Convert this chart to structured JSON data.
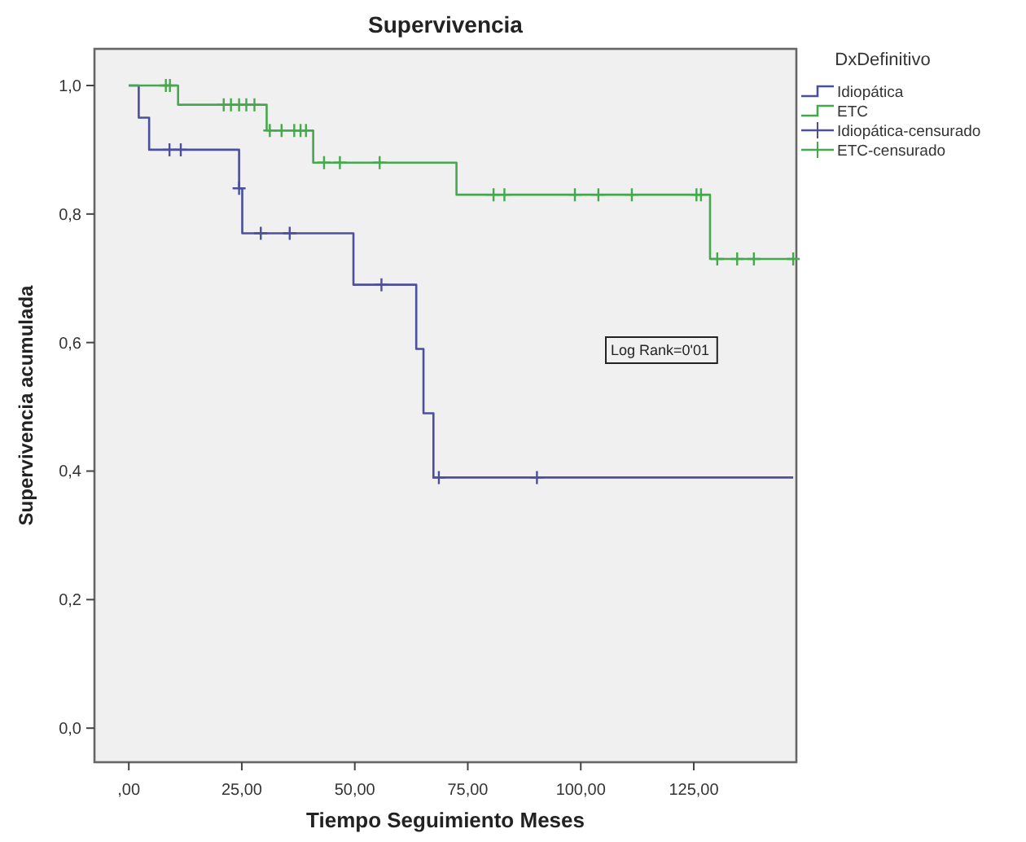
{
  "chart_data": {
    "type": "step",
    "title": "Supervivencia",
    "xlabel": "Tiempo Seguimiento Meses",
    "ylabel": "Supervivencia acumulada",
    "legend_title": "DxDefinitivo",
    "legend": "right",
    "grid": false,
    "xlim": [
      -7.6,
      147.7
    ],
    "xticks": [
      {
        "value": 0,
        "label": ",00"
      },
      {
        "value": 25,
        "label": "25,00"
      },
      {
        "value": 50,
        "label": "50,00"
      },
      {
        "value": 75,
        "label": "75,00"
      },
      {
        "value": 100,
        "label": "100,00"
      },
      {
        "value": 125,
        "label": "125,00"
      }
    ],
    "ylim": [
      -0.053,
      1.057
    ],
    "yticks": [
      {
        "value": 0,
        "label": "0,0"
      },
      {
        "value": 0.2,
        "label": "0,2"
      },
      {
        "value": 0.4,
        "label": "0,4"
      },
      {
        "value": 0.6,
        "label": "0,6"
      },
      {
        "value": 0.8,
        "label": "0,8"
      },
      {
        "value": 1,
        "label": "1,0"
      }
    ],
    "annotations": [
      "Log Rank=0'01"
    ],
    "series": [
      {
        "name": "Idiopática",
        "color": "#4b4f9c",
        "x": [
          0,
          2.2,
          4.5,
          24.4,
          25.1,
          49.7,
          63.6,
          65.2,
          67.4,
          147
        ],
        "values": [
          1,
          0.95,
          0.9,
          0.84,
          0.77,
          0.69,
          0.59,
          0.49,
          0.39,
          0.39
        ]
      },
      {
        "name": "ETC",
        "color": "#44a84c",
        "x": [
          0,
          10.9,
          30.5,
          40.8,
          72.5,
          128.6,
          147
        ],
        "values": [
          1,
          0.97,
          0.93,
          0.88,
          0.83,
          0.73,
          0.73
        ]
      },
      {
        "name": "Idiopática-censurado",
        "type": "scatter",
        "marker": "cross",
        "color": "#4b4f9c",
        "x": [
          9,
          11.5,
          24.4,
          29.2,
          35.6,
          55.9,
          68.6,
          90.3
        ],
        "values": [
          0.9,
          0.9,
          0.84,
          0.77,
          0.77,
          0.69,
          0.39,
          0.39
        ]
      },
      {
        "name": "ETC-censurado",
        "type": "scatter",
        "marker": "cross",
        "color": "#44a84c",
        "x": [
          8.2,
          9.1,
          21,
          22.6,
          24.4,
          26,
          27.8,
          31.2,
          33.8,
          36.6,
          38,
          39.2,
          43.2,
          46.7,
          55.5,
          80.7,
          83.1,
          98.7,
          103.9,
          111.3,
          125.6,
          126.6,
          130.2,
          134.6,
          138.3,
          147
        ],
        "values": [
          1,
          1,
          0.97,
          0.97,
          0.97,
          0.97,
          0.97,
          0.93,
          0.93,
          0.93,
          0.93,
          0.93,
          0.88,
          0.88,
          0.88,
          0.83,
          0.83,
          0.83,
          0.83,
          0.83,
          0.83,
          0.83,
          0.73,
          0.73,
          0.73,
          0.73
        ]
      }
    ]
  }
}
